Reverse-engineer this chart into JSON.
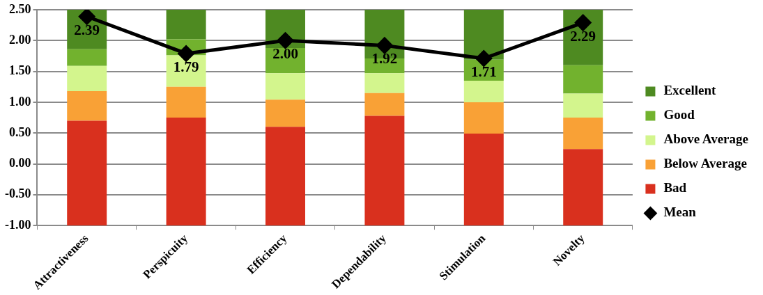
{
  "chart_data": {
    "type": "bar",
    "categories": [
      "Attractiveness",
      "Perspicuity",
      "Efficiency",
      "Dependability",
      "Stimulation",
      "Novelty"
    ],
    "series": [
      {
        "name": "Bad",
        "color": "#d9301e",
        "base": [
          -1,
          -1,
          -1,
          -1,
          -1,
          -1
        ],
        "values": [
          1.7,
          1.75,
          1.6,
          1.78,
          1.49,
          1.24
        ]
      },
      {
        "name": "Below Average",
        "color": "#f9a136",
        "base": [
          0.7,
          0.75,
          0.6,
          0.78,
          0.49,
          0.24
        ],
        "values": [
          0.48,
          0.5,
          0.44,
          0.37,
          0.51,
          0.51
        ]
      },
      {
        "name": "Above Average",
        "color": "#d3f58d",
        "base": [
          1.18,
          1.25,
          1.04,
          1.15,
          1.0,
          0.75
        ],
        "values": [
          0.41,
          0.51,
          0.43,
          0.32,
          0.35,
          0.39
        ]
      },
      {
        "name": "Good",
        "color": "#72b22e",
        "base": [
          1.59,
          1.76,
          1.47,
          1.47,
          1.35,
          1.14
        ],
        "values": [
          0.27,
          0.26,
          0.41,
          0.24,
          0.34,
          0.46
        ]
      },
      {
        "name": "Excellent",
        "color": "#4e8a21",
        "base": [
          1.86,
          2.02,
          1.88,
          1.71,
          1.69,
          1.6
        ],
        "values": [
          0.64,
          0.48,
          0.62,
          0.79,
          0.81,
          0.9
        ]
      },
      {
        "name": "Mean",
        "type": "line",
        "color": "#000000",
        "marker": "diamond",
        "values": [
          2.39,
          1.79,
          2.0,
          1.92,
          1.71,
          2.29
        ],
        "value_labels": [
          "2.39",
          "1.79",
          "2.00",
          "1.92",
          "1.71",
          "2.29"
        ]
      }
    ],
    "ylim": [
      -1,
      2.5
    ],
    "yticks": [
      {
        "value": -1,
        "label": "-1.00"
      },
      {
        "value": -0.5,
        "label": "-0.50"
      },
      {
        "value": 0,
        "label": "0.00"
      },
      {
        "value": 0.5,
        "label": "0.50"
      },
      {
        "value": 1,
        "label": "1.00"
      },
      {
        "value": 1.5,
        "label": "1.50"
      },
      {
        "value": 2,
        "label": "2.00"
      },
      {
        "value": 2.5,
        "label": "2.50"
      }
    ],
    "grid": "y",
    "legend": "right"
  }
}
